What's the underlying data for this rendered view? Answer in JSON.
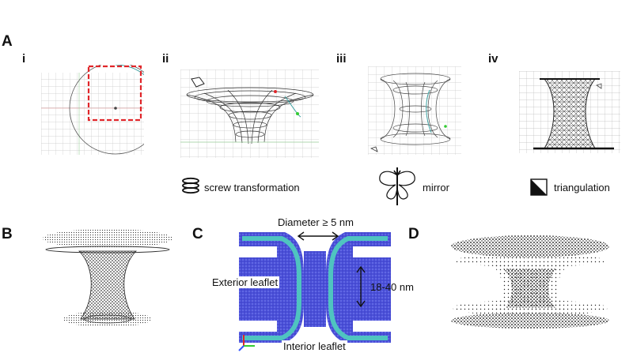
{
  "panels": {
    "A": {
      "letter": "A",
      "steps": [
        {
          "numeral": "i"
        },
        {
          "numeral": "ii",
          "caption": "screw transformation",
          "icon": "spring-icon"
        },
        {
          "numeral": "iii",
          "caption": "mirror",
          "icon": "butterfly-mirror-icon"
        },
        {
          "numeral": "iv",
          "caption": "triangulation",
          "icon": "triangle-square-icon"
        }
      ]
    },
    "B": {
      "letter": "B"
    },
    "C": {
      "letter": "C",
      "diameter_label": "Diameter ≥ 5 nm",
      "height_label": "18-40 nm",
      "exterior_label": "Exterior leaflet",
      "interior_label": "Interior leaflet"
    },
    "D": {
      "letter": "D"
    }
  },
  "colors": {
    "selection_box": "#e0262a",
    "membrane_blue": "#4a4fd8",
    "membrane_cyan": "#4fc4c0",
    "grid_line": "#c9c9c9"
  }
}
